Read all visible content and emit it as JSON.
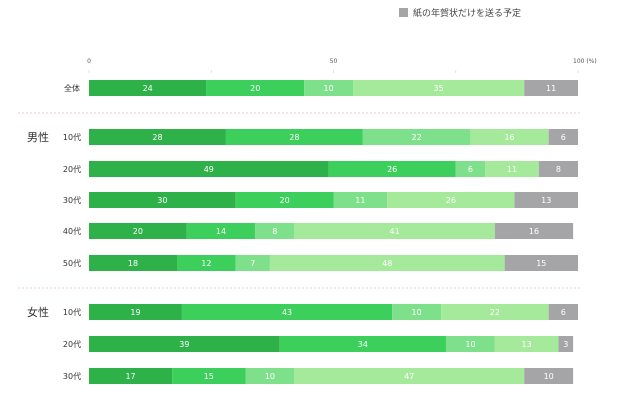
{
  "legend": [
    {
      "label": "紙の年賀状だけを送る予定",
      "color": "#a5a5a8"
    }
  ],
  "colors": {
    "seg1": "#2fb149",
    "seg2": "#3ccf5c",
    "seg3": "#7fe08b",
    "seg4": "#a5ea9b",
    "seg5": "#a5a5a8",
    "separator": "#f0b8b8",
    "grid": "#d8d8d8",
    "text": "#333333"
  },
  "chart_data": {
    "type": "bar",
    "orientation": "horizontal",
    "stacked": true,
    "xlim": [
      0,
      100
    ],
    "xticks": [
      "0",
      "50",
      "100 (%)"
    ],
    "groups": [
      {
        "name": "",
        "rows": [
          {
            "category": "全体",
            "values": [
              24,
              20,
              10,
              35,
              11
            ]
          }
        ]
      },
      {
        "name": "男性",
        "rows": [
          {
            "category": "10代",
            "values": [
              28,
              28,
              22,
              16,
              6
            ]
          },
          {
            "category": "20代",
            "values": [
              49,
              26,
              6,
              11,
              8
            ]
          },
          {
            "category": "30代",
            "values": [
              30,
              20,
              11,
              26,
              13
            ]
          },
          {
            "category": "40代",
            "values": [
              20,
              14,
              8,
              41,
              16
            ]
          },
          {
            "category": "50代",
            "values": [
              18,
              12,
              7,
              48,
              15
            ]
          }
        ]
      },
      {
        "name": "女性",
        "rows": [
          {
            "category": "10代",
            "values": [
              19,
              43,
              10,
              22,
              6
            ]
          },
          {
            "category": "20代",
            "values": [
              39,
              34,
              10,
              13,
              3
            ]
          },
          {
            "category": "30代",
            "values": [
              17,
              15,
              10,
              47,
              10
            ]
          }
        ]
      }
    ]
  }
}
